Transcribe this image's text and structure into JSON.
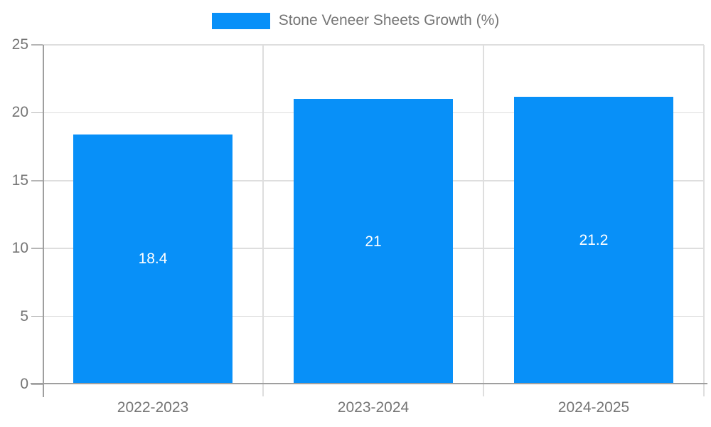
{
  "chart_data": {
    "type": "bar",
    "title": "Stone Veneer Sheets Growth (%)",
    "categories": [
      "2022-2023",
      "2023-2024",
      "2024-2025"
    ],
    "values": [
      18.4,
      21,
      21.2
    ],
    "value_labels": [
      "18.4",
      "21",
      "21.2"
    ],
    "xlabel": "",
    "ylabel": "",
    "ylim": [
      0,
      25
    ],
    "yticks": [
      0,
      5,
      10,
      15,
      20,
      25
    ],
    "grid": true,
    "legend_position": "top",
    "bar_label_position": "inside-center",
    "colors": {
      "bar": "#0890F8",
      "grid": "#dedede",
      "axis": "#9f9f9f",
      "y_tick": "#b5b5b5",
      "text": "#757575",
      "bar_label": "#ffffff",
      "background": "#ffffff"
    }
  }
}
